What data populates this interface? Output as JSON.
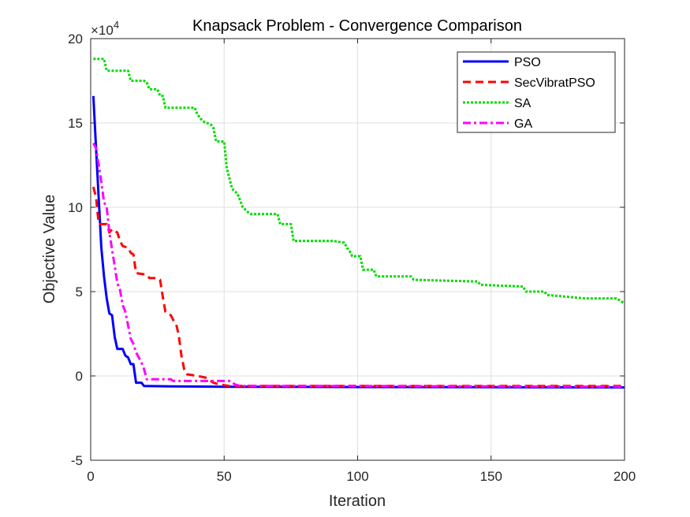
{
  "chart_data": {
    "type": "line",
    "title": "Knapsack Problem - Convergence Comparison",
    "xlabel": "Iteration",
    "ylabel": "Objective Value",
    "xlim": [
      0,
      200
    ],
    "ylim": [
      -5,
      20
    ],
    "xticks": [
      "0",
      "50",
      "100",
      "150",
      "200"
    ],
    "yticks": [
      "-5",
      "0",
      "5",
      "10",
      "15",
      "20"
    ],
    "y_exponent_label": "×10",
    "y_exponent_power": "4",
    "grid": true,
    "legend_position": "top-right",
    "series": [
      {
        "name": "PSO",
        "color": "#0000ff",
        "style": "solid",
        "points": [
          [
            1,
            16.6
          ],
          [
            2,
            13.5
          ],
          [
            3,
            10.5
          ],
          [
            4,
            7.6
          ],
          [
            5,
            5.9
          ],
          [
            6,
            4.6
          ],
          [
            7,
            3.7
          ],
          [
            8,
            3.6
          ],
          [
            9,
            2.3
          ],
          [
            10,
            1.6
          ],
          [
            12,
            1.6
          ],
          [
            13,
            1.2
          ],
          [
            14,
            1.1
          ],
          [
            15,
            0.7
          ],
          [
            16,
            0.7
          ],
          [
            17,
            -0.4
          ],
          [
            19,
            -0.4
          ],
          [
            20,
            -0.6
          ],
          [
            30,
            -0.62
          ],
          [
            50,
            -0.64
          ],
          [
            100,
            -0.66
          ],
          [
            150,
            -0.67
          ],
          [
            200,
            -0.68
          ]
        ]
      },
      {
        "name": "SecVibratPSO",
        "color": "#ff0000",
        "style": "dashed",
        "points": [
          [
            1,
            11.2
          ],
          [
            2,
            10.6
          ],
          [
            3,
            9.0
          ],
          [
            6,
            9.0
          ],
          [
            7,
            8.5
          ],
          [
            8,
            8.7
          ],
          [
            10,
            8.5
          ],
          [
            11,
            8.0
          ],
          [
            12,
            7.7
          ],
          [
            14,
            7.6
          ],
          [
            15,
            7.3
          ],
          [
            16,
            7.2
          ],
          [
            17,
            6.1
          ],
          [
            21,
            6.0
          ],
          [
            22,
            5.8
          ],
          [
            25,
            5.8
          ],
          [
            26,
            5.7
          ],
          [
            27,
            4.7
          ],
          [
            28,
            3.8
          ],
          [
            30,
            3.6
          ],
          [
            31,
            3.3
          ],
          [
            32,
            3.1
          ],
          [
            33,
            2.4
          ],
          [
            34,
            1.2
          ],
          [
            35,
            0.4
          ],
          [
            36,
            0.1
          ],
          [
            40,
            0.0
          ],
          [
            43,
            -0.1
          ],
          [
            46,
            -0.4
          ],
          [
            48,
            -0.5
          ],
          [
            52,
            -0.6
          ],
          [
            100,
            -0.6
          ],
          [
            150,
            -0.6
          ],
          [
            200,
            -0.6
          ]
        ]
      },
      {
        "name": "SA",
        "color": "#00dd00",
        "style": "dotted",
        "points": [
          [
            1,
            18.8
          ],
          [
            5,
            18.8
          ],
          [
            6,
            18.1
          ],
          [
            14,
            18.1
          ],
          [
            15,
            17.5
          ],
          [
            20,
            17.5
          ],
          [
            21,
            17.4
          ],
          [
            22,
            17.0
          ],
          [
            25,
            17.0
          ],
          [
            26,
            16.6
          ],
          [
            27,
            16.6
          ],
          [
            28,
            15.9
          ],
          [
            39,
            15.9
          ],
          [
            40,
            15.5
          ],
          [
            42,
            15.1
          ],
          [
            45,
            14.9
          ],
          [
            46,
            14.7
          ],
          [
            47,
            13.9
          ],
          [
            50,
            13.9
          ],
          [
            51,
            12.3
          ],
          [
            53,
            11.1
          ],
          [
            55,
            10.8
          ],
          [
            57,
            10.0
          ],
          [
            59,
            9.7
          ],
          [
            60,
            9.6
          ],
          [
            70,
            9.6
          ],
          [
            71,
            9.0
          ],
          [
            75,
            9.0
          ],
          [
            76,
            8.0
          ],
          [
            91,
            8.0
          ],
          [
            95,
            7.9
          ],
          [
            96,
            7.6
          ],
          [
            97,
            7.4
          ],
          [
            98,
            7.1
          ],
          [
            101,
            7.1
          ],
          [
            102,
            6.3
          ],
          [
            106,
            6.3
          ],
          [
            107,
            5.9
          ],
          [
            120,
            5.9
          ],
          [
            121,
            5.7
          ],
          [
            145,
            5.6
          ],
          [
            146,
            5.4
          ],
          [
            162,
            5.3
          ],
          [
            163,
            5.0
          ],
          [
            170,
            5.0
          ],
          [
            171,
            4.8
          ],
          [
            178,
            4.7
          ],
          [
            185,
            4.6
          ],
          [
            197,
            4.6
          ],
          [
            200,
            4.3
          ]
        ]
      },
      {
        "name": "GA",
        "color": "#ff00ff",
        "style": "dashdot",
        "points": [
          [
            1,
            13.8
          ],
          [
            2,
            13.5
          ],
          [
            3,
            12.5
          ],
          [
            4,
            11.5
          ],
          [
            5,
            10.3
          ],
          [
            6,
            10.0
          ],
          [
            7,
            8.5
          ],
          [
            8,
            7.5
          ],
          [
            9,
            6.5
          ],
          [
            10,
            5.5
          ],
          [
            11,
            5.1
          ],
          [
            12,
            4.2
          ],
          [
            13,
            3.8
          ],
          [
            14,
            3.0
          ],
          [
            15,
            2.2
          ],
          [
            16,
            1.9
          ],
          [
            17,
            1.4
          ],
          [
            18,
            1.1
          ],
          [
            19,
            0.8
          ],
          [
            20,
            0.4
          ],
          [
            21,
            -0.2
          ],
          [
            30,
            -0.2
          ],
          [
            31,
            -0.3
          ],
          [
            40,
            -0.3
          ],
          [
            52,
            -0.3
          ],
          [
            53,
            -0.4
          ],
          [
            54,
            -0.5
          ],
          [
            56,
            -0.6
          ],
          [
            100,
            -0.6
          ],
          [
            150,
            -0.62
          ],
          [
            200,
            -0.64
          ]
        ]
      }
    ]
  }
}
